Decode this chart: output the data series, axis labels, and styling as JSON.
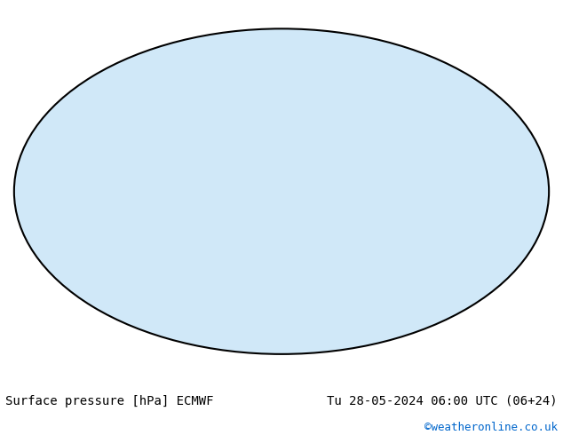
{
  "title_left": "Surface pressure [hPa] ECMWF",
  "title_right": "Tu 28-05-2024 06:00 UTC (06+24)",
  "watermark": "©weatheronline.co.uk",
  "background_color": "#ffffff",
  "map_bg_color": "#d0e8f8",
  "land_color": "#c8e6a0",
  "mountain_color": "#c0c0c0",
  "contour_interval": 4,
  "pressure_min": 960,
  "pressure_max": 1040,
  "label_fontsize": 6.5,
  "title_fontsize": 10,
  "watermark_fontsize": 9,
  "contour_colors": {
    "below_1013": "#0000ff",
    "above_1013": "#ff0000",
    "at_1013": "#000000"
  },
  "fig_width": 6.34,
  "fig_height": 4.9
}
